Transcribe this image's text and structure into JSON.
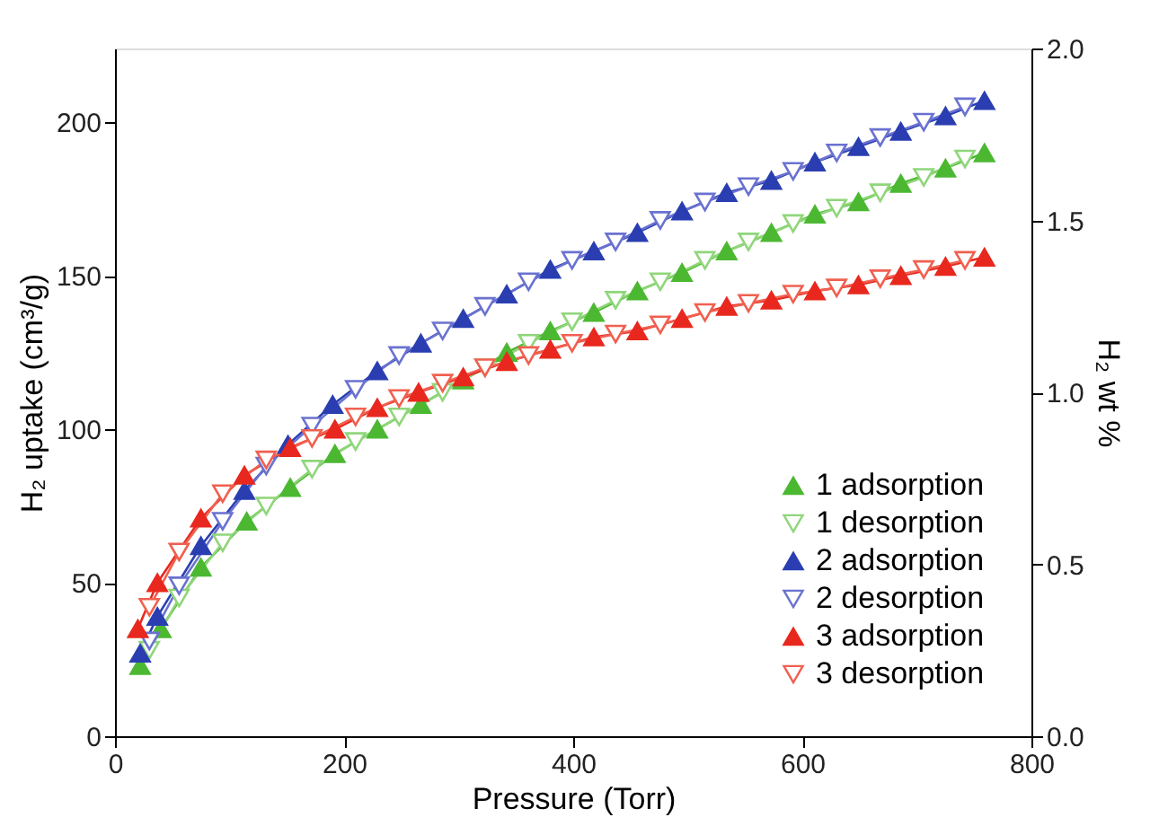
{
  "chart_data": {
    "type": "line",
    "xlabel": "Pressure (Torr)",
    "ylabel": "H₂ uptake (cm³/g)",
    "y2label": "H₂ wt %",
    "xlim": [
      0,
      800
    ],
    "xticks": [
      0,
      200,
      400,
      600,
      800
    ],
    "ylim": [
      0,
      224
    ],
    "yticks": [
      0,
      50,
      100,
      150,
      200
    ],
    "y2lim": [
      0,
      2.0
    ],
    "y2ticks": [
      {
        "value": 0,
        "label": "0.0"
      },
      {
        "value": 0.5,
        "label": "0.5"
      },
      {
        "value": 1,
        "label": "1.0"
      },
      {
        "value": 1.5,
        "label": "1.5"
      },
      {
        "value": 2,
        "label": "2.0"
      }
    ],
    "grid": false,
    "legend": "bottom right",
    "line_style": "solid",
    "series": [
      {
        "name": "1 adsorption",
        "color": "#4cb832",
        "marker": "triangle",
        "x": [
          22,
          40,
          75,
          115,
          153,
          192,
          229,
          267,
          304,
          342,
          380,
          418,
          456,
          495,
          534,
          573,
          611,
          649,
          686,
          725,
          759
        ],
        "values": [
          23,
          35,
          55,
          70,
          81,
          92,
          100,
          108,
          116,
          125,
          132,
          138,
          145,
          151,
          158,
          164,
          170,
          174,
          180,
          185,
          190
        ]
      },
      {
        "name": "1 desorption",
        "color": "#8fd67a",
        "marker": "triangle-down",
        "x": [
          30,
          56,
          94,
          132,
          172,
          210,
          248,
          286,
          323,
          361,
          399,
          437,
          476,
          515,
          553,
          592,
          630,
          668,
          706,
          742
        ],
        "values": [
          28,
          45,
          63,
          75,
          87,
          96,
          104,
          112,
          120,
          128,
          135,
          142,
          148,
          155,
          161,
          167,
          172,
          177,
          182,
          188
        ]
      },
      {
        "name": "2 adsorption",
        "color": "#2a3eb1",
        "marker": "triangle",
        "x": [
          22,
          37,
          75,
          113,
          151,
          190,
          229,
          267,
          304,
          342,
          380,
          418,
          456,
          495,
          534,
          573,
          611,
          649,
          686,
          725,
          759
        ],
        "values": [
          27,
          39,
          62,
          80,
          95,
          108,
          119,
          128,
          136,
          144,
          152,
          158,
          164,
          171,
          177,
          181,
          187,
          192,
          197,
          202,
          207
        ]
      },
      {
        "name": "2 desorption",
        "color": "#6a72d0",
        "marker": "triangle-down",
        "x": [
          30,
          56,
          94,
          132,
          172,
          210,
          248,
          286,
          323,
          361,
          399,
          437,
          476,
          515,
          553,
          592,
          630,
          668,
          706,
          742
        ],
        "values": [
          31,
          49,
          70,
          88,
          101,
          113,
          124,
          132,
          140,
          148,
          155,
          161,
          168,
          174,
          179,
          184,
          190,
          195,
          200,
          205
        ]
      },
      {
        "name": "3 adsorption",
        "color": "#e8281e",
        "marker": "triangle",
        "x": [
          20,
          37,
          75,
          113,
          153,
          192,
          229,
          265,
          304,
          342,
          380,
          418,
          456,
          495,
          534,
          573,
          611,
          649,
          686,
          725,
          759
        ],
        "values": [
          35,
          50,
          71,
          85,
          94,
          100,
          107,
          112,
          117,
          122,
          126,
          130,
          132,
          136,
          140,
          142,
          145,
          147,
          150,
          153,
          156
        ]
      },
      {
        "name": "3 desorption",
        "color": "#f06050",
        "marker": "triangle-down",
        "x": [
          30,
          56,
          94,
          132,
          172,
          210,
          248,
          286,
          323,
          361,
          399,
          437,
          476,
          515,
          553,
          592,
          630,
          668,
          706,
          742
        ],
        "values": [
          42,
          60,
          79,
          90,
          97,
          104,
          110,
          115,
          120,
          124,
          128,
          131,
          134,
          138,
          141,
          144,
          146,
          149,
          152,
          155
        ]
      }
    ]
  }
}
